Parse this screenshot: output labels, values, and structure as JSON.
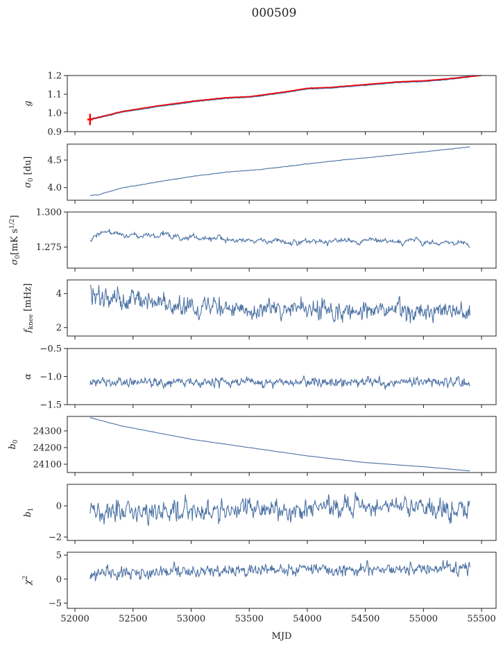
{
  "chart_data": {
    "type": "line",
    "title": "000509",
    "xlabel": "MJD",
    "xlim": [
      51934,
      55625
    ],
    "xticks": [
      52000,
      52500,
      53000,
      53500,
      54000,
      54500,
      55000,
      55500
    ],
    "xtick_labels": [
      "52000",
      "52500",
      "53000",
      "53500",
      "54000",
      "54500",
      "55000",
      "55500"
    ],
    "line_color": "#4c72a4",
    "panels": [
      {
        "ylabel": {
          "base": "g",
          "sub": "",
          "sup": "",
          "rest": ""
        },
        "ylim": [
          0.9,
          1.2
        ],
        "yticks": [
          0.9,
          1.0,
          1.1,
          1.2
        ],
        "ytick_labels": [
          "0.9",
          "1.0",
          "1.1",
          "1.2"
        ],
        "trend_x": [
          52130,
          52400,
          52700,
          53000,
          53300,
          53500,
          53800,
          54000,
          54200,
          54400,
          54600,
          54800,
          55000,
          55200,
          55400
        ],
        "trend_y": [
          0.965,
          1.005,
          1.035,
          1.06,
          1.08,
          1.085,
          1.11,
          1.13,
          1.135,
          1.145,
          1.155,
          1.165,
          1.17,
          1.18,
          1.195
        ],
        "noise": 0.001,
        "overlay": {
          "name": "fit",
          "color": "#ff0000",
          "x": [
            52130,
            52400,
            52700,
            53000,
            53300,
            53500,
            53800,
            54000,
            54200,
            54400,
            54600,
            54800,
            55000,
            55200,
            55500
          ],
          "y": [
            0.965,
            1.007,
            1.037,
            1.062,
            1.082,
            1.087,
            1.112,
            1.132,
            1.137,
            1.147,
            1.157,
            1.167,
            1.172,
            1.182,
            1.2
          ],
          "errorbar": {
            "x": 52130,
            "y": 0.965,
            "err": 0.03
          }
        }
      },
      {
        "ylabel": {
          "base": "σ",
          "sub": "0",
          "sup": "",
          "rest": " [du]"
        },
        "ylim": [
          3.77,
          4.79
        ],
        "yticks": [
          4.0,
          4.5
        ],
        "ytick_labels": [
          "4.0",
          "4.5"
        ],
        "trend_x": [
          52130,
          52200,
          52400,
          52700,
          53000,
          53300,
          53600,
          54000,
          54300,
          54600,
          55000,
          55400
        ],
        "trend_y": [
          3.86,
          3.87,
          3.99,
          4.1,
          4.2,
          4.28,
          4.33,
          4.43,
          4.5,
          4.56,
          4.65,
          4.74
        ],
        "noise": 0.003
      },
      {
        "ylabel": {
          "base": "σ",
          "sub": "0",
          "sup": "1/2",
          "rest": "[mK s",
          "close": "]"
        },
        "ylim": [
          1.26,
          1.3
        ],
        "yticks": [
          1.275,
          1.3
        ],
        "ytick_labels": [
          "1.275",
          "1.300"
        ],
        "trend_x": [
          52130,
          52200,
          52300,
          52500,
          52700,
          53000,
          53300,
          53500,
          53800,
          54000,
          54500,
          55000,
          55300,
          55400
        ],
        "trend_y": [
          1.279,
          1.284,
          1.286,
          1.283,
          1.284,
          1.281,
          1.282,
          1.279,
          1.28,
          1.279,
          1.279,
          1.279,
          1.278,
          1.275
        ],
        "noise": 0.0012,
        "walk": true
      },
      {
        "ylabel": {
          "base": "f",
          "sub": "knee",
          "sup": "",
          "rest": " [mHz]"
        },
        "ylim": [
          1.5,
          4.8
        ],
        "yticks": [
          2,
          4
        ],
        "ytick_labels": [
          "2",
          "4"
        ],
        "trend_x": [
          52130,
          52500,
          53000,
          53500,
          54000,
          54500,
          55000,
          55400
        ],
        "trend_y": [
          3.9,
          3.6,
          3.3,
          3.15,
          3.1,
          3.0,
          3.0,
          2.9
        ],
        "noise": 0.35
      },
      {
        "ylabel": {
          "base": "α",
          "sub": "",
          "sup": "",
          "rest": ""
        },
        "ylim": [
          -1.5,
          -0.5
        ],
        "yticks": [
          -1.5,
          -1.0,
          -0.5
        ],
        "ytick_labels": [
          "−1.5",
          "−1.0",
          "−0.5"
        ],
        "trend_x": [
          52130,
          55400
        ],
        "trend_y": [
          -1.1,
          -1.1
        ],
        "noise": 0.05
      },
      {
        "ylabel": {
          "base": "b",
          "sub": "0",
          "sup": "",
          "rest": ""
        },
        "ylim": [
          24050,
          24387
        ],
        "yticks": [
          24100,
          24200,
          24300
        ],
        "ytick_labels": [
          "24100",
          "24200",
          "24300"
        ],
        "trend_x": [
          52130,
          52400,
          52700,
          53000,
          53500,
          54000,
          54500,
          55000,
          55400
        ],
        "trend_y": [
          24380,
          24330,
          24290,
          24250,
          24200,
          24150,
          24110,
          24085,
          24060
        ],
        "noise": 0.5
      },
      {
        "ylabel": {
          "base": "b",
          "sub": "1",
          "sup": "",
          "rest": ""
        },
        "ylim": [
          -2.22,
          1.38
        ],
        "yticks": [
          -2,
          0
        ],
        "ytick_labels": [
          "−2",
          "0"
        ],
        "trend_x": [
          52130,
          53000,
          54000,
          54500,
          55400
        ],
        "trend_y": [
          -0.5,
          -0.4,
          -0.25,
          -0.1,
          -0.2
        ],
        "noise": 0.4
      },
      {
        "ylabel": {
          "base": "χ",
          "sub": "",
          "sup": "2",
          "rest": ""
        },
        "ylim": [
          -6.1,
          5.6
        ],
        "yticks": [
          -5,
          0,
          5
        ],
        "ytick_labels": [
          "−5",
          "0",
          "5"
        ],
        "trend_x": [
          52130,
          52300,
          53000,
          54000,
          55000,
          55400
        ],
        "trend_y": [
          0.5,
          1.2,
          1.6,
          2.0,
          2.1,
          2.5
        ],
        "noise": 0.75
      }
    ]
  }
}
